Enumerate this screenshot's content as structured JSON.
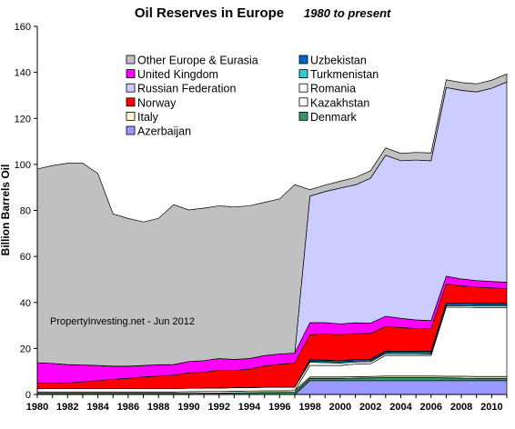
{
  "chart_data": {
    "type": "area",
    "stacked": true,
    "title": "Oil Reserves in Europe",
    "subtitle": "1980 to present",
    "ylabel": "Billion Barrels Oil",
    "xlabel": "",
    "annotation": "PropertyInvesting.net - Jun 2012",
    "ylim": [
      0,
      160
    ],
    "yticks": [
      0,
      20,
      40,
      60,
      80,
      100,
      120,
      140,
      160
    ],
    "xlim": [
      1980,
      2011
    ],
    "xticks": [
      1980,
      1982,
      1984,
      1986,
      1988,
      1990,
      1992,
      1994,
      1996,
      1998,
      2000,
      2002,
      2004,
      2006,
      2008,
      2010
    ],
    "grid": false,
    "legend_position": "top-center",
    "x": [
      1980,
      1981,
      1982,
      1983,
      1984,
      1985,
      1986,
      1987,
      1988,
      1989,
      1990,
      1991,
      1992,
      1993,
      1994,
      1995,
      1996,
      1997,
      1998,
      1999,
      2000,
      2001,
      2002,
      2003,
      2004,
      2005,
      2006,
      2007,
      2008,
      2009,
      2010,
      2011
    ],
    "series": [
      {
        "name": "Azerbaijan",
        "color": "#9999ff",
        "values": [
          0,
          0,
          0,
          0,
          0,
          0,
          0,
          0,
          0,
          0,
          0,
          0,
          0,
          0,
          0,
          0,
          0,
          0,
          6,
          6,
          6,
          6,
          6,
          6,
          6,
          6,
          6,
          6,
          6,
          6,
          6,
          6
        ]
      },
      {
        "name": "Denmark",
        "color": "#339966",
        "values": [
          0.5,
          0.5,
          0.5,
          0.5,
          0.5,
          0.5,
          0.5,
          0.5,
          0.5,
          0.5,
          0.5,
          0.6,
          0.6,
          0.7,
          0.8,
          0.9,
          0.9,
          1,
          1,
          1,
          1,
          1.1,
          1.2,
          1.3,
          1.3,
          1.3,
          1.3,
          1.2,
          1.1,
          1,
          1,
          1
        ]
      },
      {
        "name": "Italy",
        "color": "#ffffcc",
        "values": [
          0.6,
          0.6,
          0.6,
          0.6,
          0.6,
          0.6,
          0.6,
          0.6,
          0.6,
          0.6,
          0.7,
          0.7,
          0.7,
          0.7,
          0.7,
          0.7,
          0.7,
          0.7,
          0.6,
          0.6,
          0.6,
          0.6,
          0.6,
          0.7,
          0.7,
          0.7,
          0.7,
          0.7,
          0.8,
          0.8,
          0.8,
          0.8
        ]
      },
      {
        "name": "Kazakhstan",
        "color": "#ffffff",
        "values": [
          0,
          0,
          0,
          0,
          0,
          0,
          0,
          0,
          0,
          0,
          0,
          0,
          0,
          0,
          0,
          0,
          0,
          0,
          5,
          5,
          5,
          5.5,
          5.5,
          9,
          9,
          9,
          9,
          30,
          30,
          30,
          30,
          30
        ]
      },
      {
        "name": "Romania",
        "color": "#ffffff",
        "values": [
          1.5,
          1.5,
          1.5,
          1.5,
          1.5,
          1.5,
          1.5,
          1.5,
          1.5,
          1.5,
          1.5,
          1.5,
          1.5,
          1.5,
          1.5,
          1.5,
          1.5,
          1.5,
          1.4,
          1.2,
          1,
          0.9,
          0.9,
          0.8,
          0.7,
          0.7,
          0.6,
          0.6,
          0.6,
          0.6,
          0.6,
          0.6
        ]
      },
      {
        "name": "Turkmenistan",
        "color": "#33cccc",
        "values": [
          0,
          0,
          0,
          0,
          0,
          0,
          0,
          0,
          0,
          0,
          0,
          0,
          0,
          0,
          0,
          0,
          0,
          0,
          0.5,
          0.5,
          0.5,
          0.5,
          0.5,
          0.5,
          0.5,
          0.5,
          0.6,
          0.6,
          0.6,
          0.6,
          0.6,
          0.6
        ]
      },
      {
        "name": "Uzbekistan",
        "color": "#0066cc",
        "values": [
          0,
          0,
          0,
          0,
          0,
          0,
          0,
          0,
          0,
          0,
          0,
          0,
          0,
          0,
          0,
          0,
          0,
          0,
          0.6,
          0.6,
          0.6,
          0.6,
          0.6,
          0.6,
          0.6,
          0.6,
          0.6,
          0.6,
          0.6,
          0.6,
          0.6,
          0.6
        ]
      },
      {
        "name": "Norway",
        "color": "#ff0000",
        "values": [
          2.4,
          2.4,
          2.4,
          2.9,
          3.4,
          4,
          4.4,
          5,
          5.4,
          5.8,
          6.7,
          6.9,
          7.8,
          7.5,
          8,
          9.3,
          10,
          10.5,
          10.9,
          11.4,
          11.3,
          11.3,
          11.2,
          10.7,
          10.3,
          9.8,
          9.8,
          8.3,
          7.5,
          7.1,
          6.7,
          6.4
        ]
      },
      {
        "name": "United Kingdom",
        "color": "#ff00ff",
        "values": [
          8.8,
          8.5,
          8,
          7.3,
          6.6,
          5.7,
          5.3,
          5,
          4.9,
          4.6,
          4.9,
          5,
          5,
          4.8,
          4.6,
          4.5,
          4.5,
          4.3,
          5.2,
          4.9,
          4.7,
          4.6,
          4.5,
          4.4,
          4,
          3.8,
          3.5,
          3.4,
          3,
          2.8,
          2.8,
          2.8
        ]
      },
      {
        "name": "Russian Federation",
        "color": "#ccccff",
        "values": [
          0,
          0,
          0,
          0,
          0,
          0,
          0,
          0,
          0,
          0,
          0,
          0,
          0,
          0,
          0,
          0,
          0,
          0,
          55,
          57,
          59,
          60,
          63,
          70,
          68.5,
          69.5,
          69.5,
          82,
          82,
          82,
          84,
          87
        ]
      },
      {
        "name": "Other Europe & Eurasia",
        "color": "#c0c0c0",
        "values": [
          84.2,
          86,
          87.5,
          87.7,
          83.4,
          66.2,
          64.2,
          62.4,
          63.6,
          69.5,
          65.9,
          66.3,
          66.4,
          66.3,
          66.4,
          66.6,
          67.4,
          73.2,
          2.8,
          2.8,
          3,
          3.2,
          3.2,
          3.2,
          3.2,
          3.3,
          3.4,
          3.4,
          3.4,
          3.5,
          3.5,
          3.5
        ]
      }
    ]
  }
}
